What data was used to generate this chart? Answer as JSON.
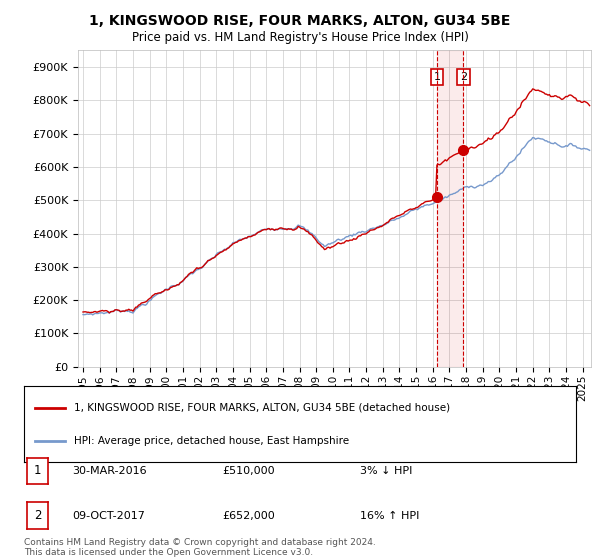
{
  "title_line1": "1, KINGSWOOD RISE, FOUR MARKS, ALTON, GU34 5BE",
  "title_line2": "Price paid vs. HM Land Registry's House Price Index (HPI)",
  "ylabel_ticks": [
    "£0",
    "£100K",
    "£200K",
    "£300K",
    "£400K",
    "£500K",
    "£600K",
    "£700K",
    "£800K",
    "£900K"
  ],
  "ytick_values": [
    0,
    100000,
    200000,
    300000,
    400000,
    500000,
    600000,
    700000,
    800000,
    900000
  ],
  "ylim": [
    0,
    950000
  ],
  "xlim_start": 1994.7,
  "xlim_end": 2025.5,
  "legend_line1": "1, KINGSWOOD RISE, FOUR MARKS, ALTON, GU34 5BE (detached house)",
  "legend_line2": "HPI: Average price, detached house, East Hampshire",
  "transaction1_label": "1",
  "transaction1_date": "30-MAR-2016",
  "transaction1_price": "£510,000",
  "transaction1_hpi": "3% ↓ HPI",
  "transaction2_label": "2",
  "transaction2_date": "09-OCT-2017",
  "transaction2_price": "£652,000",
  "transaction2_hpi": "16% ↑ HPI",
  "footnote": "Contains HM Land Registry data © Crown copyright and database right 2024.\nThis data is licensed under the Open Government Licence v3.0.",
  "color_price": "#cc0000",
  "color_hpi": "#7799cc",
  "transaction1_x": 2016.25,
  "transaction2_x": 2017.83,
  "transaction1_y": 510000,
  "transaction2_y": 652000,
  "background_color": "#ffffff",
  "grid_color": "#cccccc"
}
